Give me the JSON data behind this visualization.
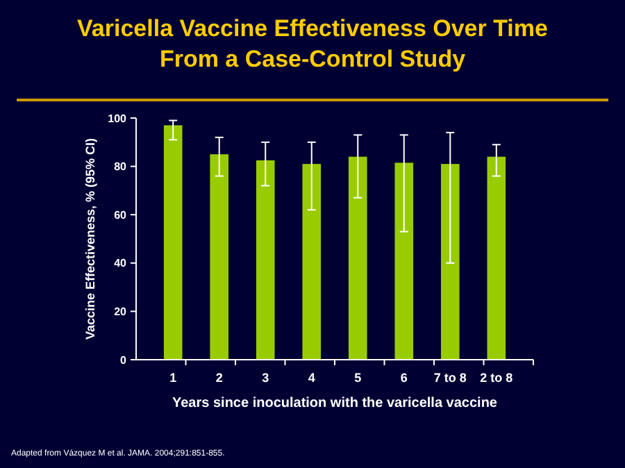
{
  "chart_data": {
    "type": "bar",
    "title": "Varicella Vaccine Effectiveness Over Time\nFrom a Case-Control Study",
    "xlabel": "Years since inoculation with the varicella vaccine",
    "ylabel": "Vaccine Effectiveness, % (95% CI)",
    "categories": [
      "1",
      "2",
      "3",
      "4",
      "5",
      "6",
      "7 to 8",
      "2 to 8"
    ],
    "values": [
      97,
      85,
      82.5,
      81,
      84,
      81.5,
      81,
      84
    ],
    "errors": [
      [
        91,
        99
      ],
      [
        76,
        92
      ],
      [
        72,
        90
      ],
      [
        62,
        90
      ],
      [
        67,
        93
      ],
      [
        53,
        93
      ],
      [
        40,
        94
      ],
      [
        76,
        89
      ]
    ],
    "color": "#99cc00",
    "ylim": [
      0,
      100
    ],
    "yticks": [
      0,
      20,
      40,
      60,
      80,
      100
    ],
    "grid": false,
    "annotations": [
      "Adapted from Vázquez M et al. JAMA. 2004;291:851-855."
    ]
  }
}
